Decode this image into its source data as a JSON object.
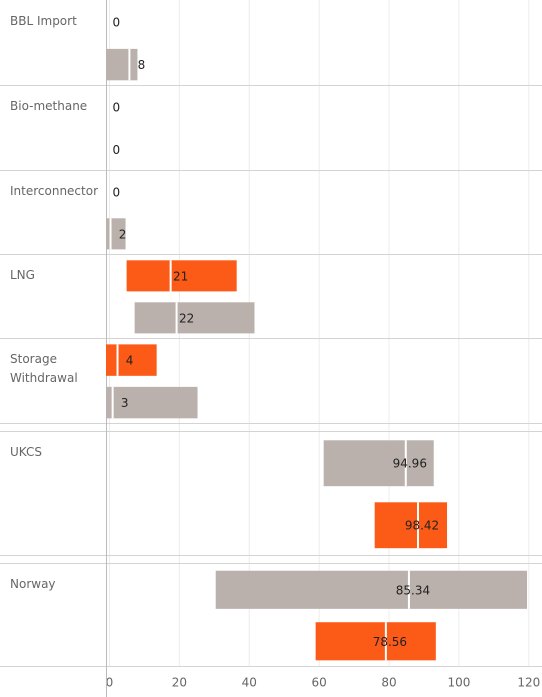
{
  "chart_data": {
    "type": "gantt",
    "xlim": [
      -1,
      123.5
    ],
    "xticks": [
      0,
      20,
      40,
      60,
      80,
      100,
      120
    ],
    "grid": true,
    "groups": [
      {
        "category": "BBL Import",
        "bars": [
          {
            "color": "#fc5a17",
            "low": null,
            "high": null,
            "ref": null,
            "value": 0
          },
          {
            "color": "#bab0ac",
            "low": -1,
            "high": 8,
            "ref": 5.7,
            "value": 8
          }
        ]
      },
      {
        "category": "Bio-methane",
        "bars": [
          {
            "color": "#fc5a17",
            "low": null,
            "high": null,
            "ref": null,
            "value": 0
          },
          {
            "color": "#bab0ac",
            "low": null,
            "high": null,
            "ref": null,
            "value": 0
          }
        ]
      },
      {
        "category": "Interconnector",
        "bars": [
          {
            "color": "#fc5a17",
            "low": null,
            "high": null,
            "ref": null,
            "value": 0
          },
          {
            "color": "#bab0ac",
            "low": -1,
            "high": 4.6,
            "ref": 0.3,
            "value": 2
          }
        ]
      },
      {
        "category": "LNG",
        "bars": [
          {
            "color": "#fc5a17",
            "low": 4.9,
            "high": 36.4,
            "ref": 17.5,
            "value": 21
          },
          {
            "color": "#bab0ac",
            "low": 7.2,
            "high": 41.5,
            "ref": 19.2,
            "value": 22
          }
        ]
      },
      {
        "category": "Storage Withdrawal",
        "bars": [
          {
            "color": "#fc5a17",
            "low": -1,
            "high": 13.5,
            "ref": 2.3,
            "value": 4
          },
          {
            "color": "#bab0ac",
            "low": -1,
            "high": 25.2,
            "ref": 0.9,
            "value": 3
          }
        ]
      },
      {
        "category": "UKCS",
        "bars": [
          {
            "color": "#bab0ac",
            "low": 61.3,
            "high": 92.8,
            "ref": 84.8,
            "value": 94.96
          },
          {
            "color": "#fc5a17",
            "low": 75.9,
            "high": 96.6,
            "ref": 88.3,
            "value": 98.42
          }
        ]
      },
      {
        "category": "Norway",
        "bars": [
          {
            "color": "#bab0ac",
            "low": 30.4,
            "high": 119.5,
            "ref": 85.7,
            "value": 85.34
          },
          {
            "color": "#fc5a17",
            "low": 59,
            "high": 93.4,
            "ref": 79.1,
            "value": 78.56
          }
        ]
      }
    ]
  }
}
